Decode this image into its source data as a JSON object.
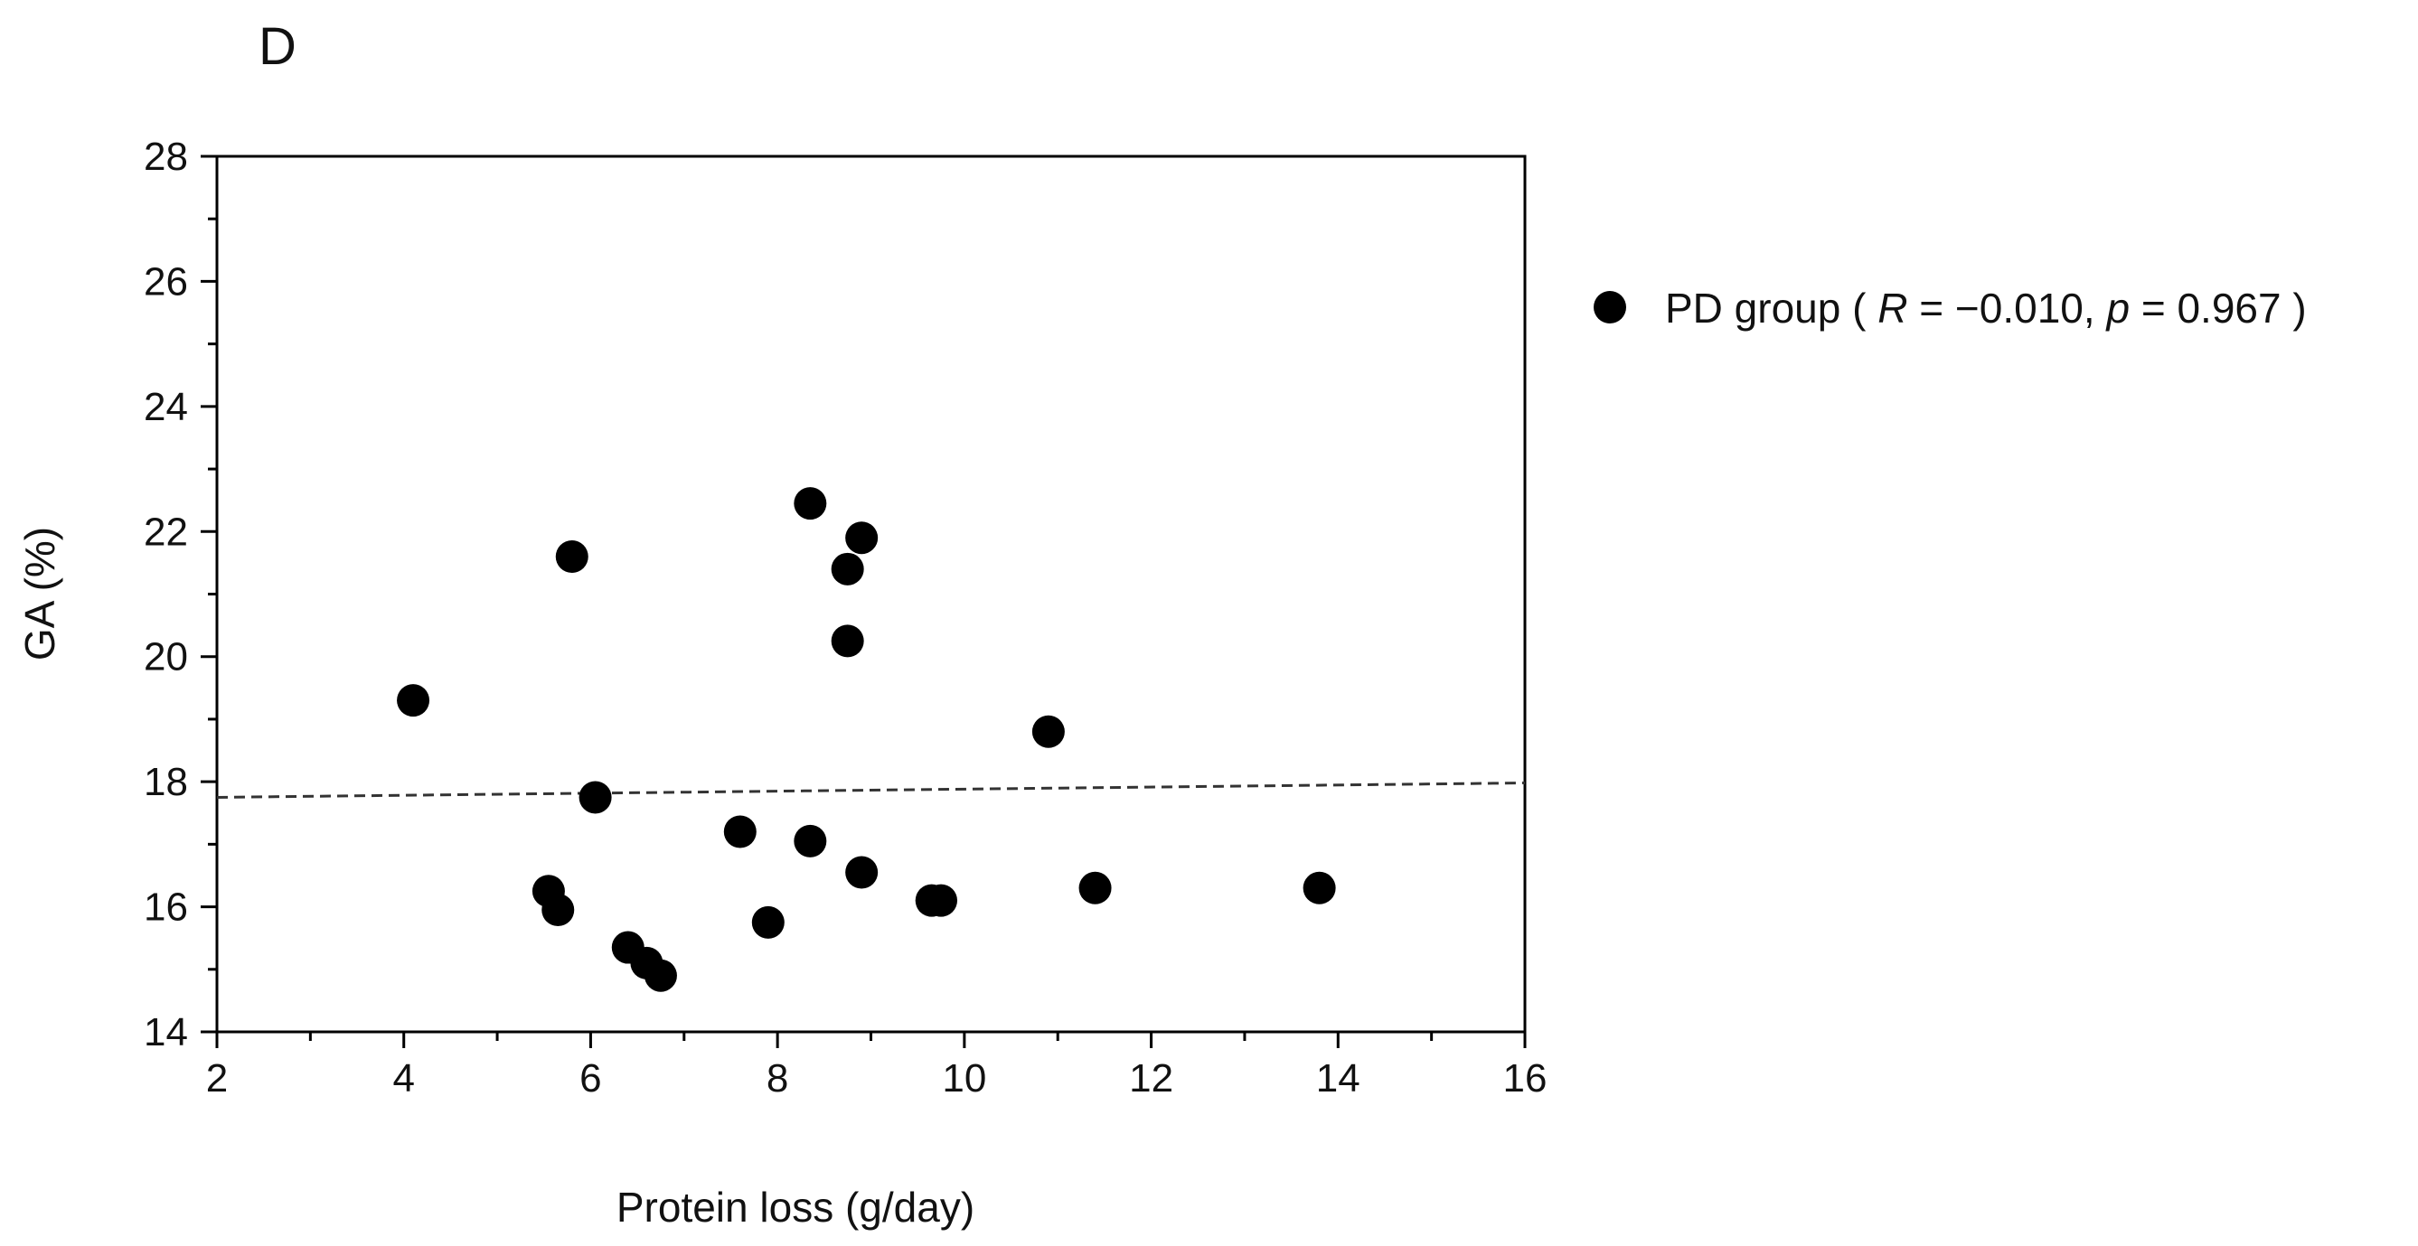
{
  "panel_label": "D",
  "chart_data": {
    "type": "scatter",
    "xlabel": "Protein loss (g/day)",
    "ylabel": "GA (%)",
    "xlim": [
      2,
      16
    ],
    "ylim": [
      14,
      28
    ],
    "x_ticks": [
      2,
      4,
      6,
      8,
      10,
      12,
      14,
      16
    ],
    "y_ticks": [
      14,
      16,
      18,
      20,
      22,
      24,
      26,
      28
    ],
    "grid": false,
    "legend_position": "right",
    "series": [
      {
        "name": "PD group",
        "stat_R_label": "R",
        "stat_R_value": "= −0.010,",
        "stat_p_label": "p",
        "stat_p_value": "= 0.967",
        "color": "#000000",
        "points": [
          {
            "x": 4.1,
            "y": 19.3
          },
          {
            "x": 5.8,
            "y": 21.6
          },
          {
            "x": 6.05,
            "y": 17.75
          },
          {
            "x": 5.55,
            "y": 16.25
          },
          {
            "x": 5.65,
            "y": 15.95
          },
          {
            "x": 6.4,
            "y": 15.35
          },
          {
            "x": 6.6,
            "y": 15.1
          },
          {
            "x": 6.75,
            "y": 14.9
          },
          {
            "x": 7.6,
            "y": 17.2
          },
          {
            "x": 7.9,
            "y": 15.75
          },
          {
            "x": 8.35,
            "y": 22.45
          },
          {
            "x": 8.35,
            "y": 17.05
          },
          {
            "x": 8.75,
            "y": 21.4
          },
          {
            "x": 8.9,
            "y": 21.9
          },
          {
            "x": 8.75,
            "y": 20.25
          },
          {
            "x": 8.9,
            "y": 16.55
          },
          {
            "x": 9.65,
            "y": 16.1
          },
          {
            "x": 9.75,
            "y": 16.1
          },
          {
            "x": 10.9,
            "y": 18.8
          },
          {
            "x": 11.4,
            "y": 16.3
          },
          {
            "x": 13.8,
            "y": 16.3
          }
        ]
      }
    ],
    "trendline": {
      "x": [
        2,
        16
      ],
      "y": [
        17.75,
        17.98
      ],
      "style": "dashed"
    }
  }
}
